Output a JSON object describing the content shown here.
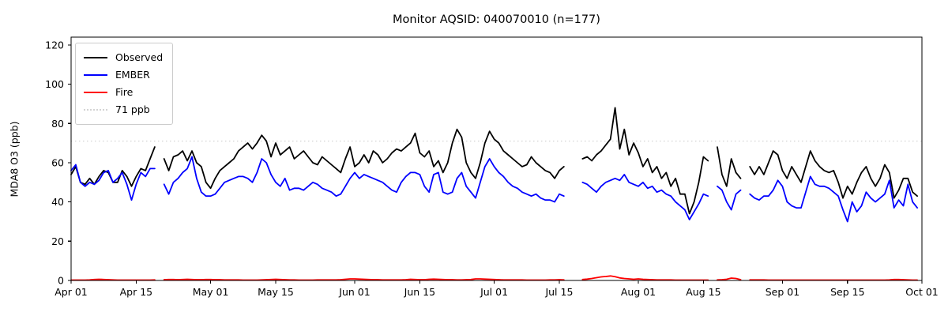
{
  "title": "Monitor AQSID: 040070010 (n=177)",
  "ylabel": "MDA8 O3 (ppb)",
  "chart_data": {
    "type": "line",
    "title": "Monitor AQSID: 040070010 (n=177)",
    "xlabel": "",
    "ylabel": "MDA8 O3 (ppb)",
    "ylim": [
      0,
      124
    ],
    "y_ticks": [
      0,
      20,
      40,
      60,
      80,
      100,
      120
    ],
    "x_tick_labels": [
      "Apr 01",
      "Apr 15",
      "May 01",
      "May 15",
      "Jun 01",
      "Jun 15",
      "Jul 01",
      "Jul 15",
      "Aug 01",
      "Aug 15",
      "Sep 01",
      "Sep 15",
      "Oct 01"
    ],
    "x_tick_days": [
      0,
      14,
      30,
      44,
      61,
      75,
      91,
      105,
      122,
      136,
      153,
      167,
      183
    ],
    "n_days": 183,
    "start_date": "Apr 01",
    "end_date": "Oct 01",
    "grid": false,
    "legend_position": "upper-left",
    "legend": [
      "Observed",
      "EMBER",
      "Fire",
      "71 ppb"
    ],
    "threshold": {
      "label": "71 ppb",
      "value": 71,
      "color": "#d3d3d3",
      "style": "dotted"
    },
    "missing_dates": [
      "Apr 20",
      "Jul 17",
      "Jul 18",
      "Jul 19",
      "Aug 17",
      "Aug 24"
    ],
    "series": [
      {
        "name": "Observed",
        "color": "#000000",
        "values": [
          54,
          58,
          50,
          49,
          52,
          49,
          53,
          56,
          55,
          50,
          50,
          56,
          53,
          48,
          53,
          57,
          56,
          62,
          68,
          null,
          62,
          56,
          63,
          64,
          66,
          61,
          66,
          60,
          58,
          50,
          47,
          52,
          56,
          58,
          60,
          62,
          66,
          68,
          70,
          67,
          70,
          74,
          71,
          63,
          70,
          64,
          66,
          68,
          62,
          64,
          66,
          63,
          60,
          59,
          63,
          61,
          59,
          57,
          55,
          62,
          68,
          58,
          60,
          64,
          60,
          66,
          64,
          60,
          62,
          65,
          67,
          66,
          68,
          70,
          75,
          65,
          63,
          66,
          58,
          61,
          55,
          60,
          70,
          77,
          73,
          60,
          55,
          52,
          60,
          70,
          76,
          72,
          70,
          66,
          64,
          62,
          60,
          58,
          59,
          63,
          60,
          58,
          56,
          55,
          52,
          56,
          58,
          null,
          null,
          null,
          62,
          63,
          61,
          64,
          66,
          69,
          72,
          88,
          67,
          77,
          64,
          70,
          65,
          58,
          62,
          55,
          58,
          52,
          55,
          48,
          52,
          44,
          44,
          34,
          40,
          50,
          63,
          61,
          null,
          68,
          54,
          48,
          62,
          55,
          52,
          null,
          58,
          54,
          58,
          54,
          60,
          66,
          64,
          56,
          52,
          58,
          54,
          50,
          58,
          66,
          61,
          58,
          56,
          55,
          56,
          50,
          42,
          48,
          44,
          50,
          55,
          58,
          52,
          48,
          52,
          59,
          55,
          42,
          46,
          52,
          52,
          45,
          43
        ]
      },
      {
        "name": "EMBER",
        "color": "#0000ff",
        "values": [
          56,
          59,
          50,
          48,
          50,
          49,
          51,
          55,
          56,
          50,
          52,
          55,
          49,
          41,
          49,
          55,
          53,
          57,
          57,
          null,
          49,
          44,
          50,
          52,
          55,
          57,
          63,
          52,
          45,
          43,
          43,
          44,
          47,
          50,
          51,
          52,
          53,
          53,
          52,
          50,
          55,
          62,
          60,
          54,
          50,
          48,
          52,
          46,
          47,
          47,
          46,
          48,
          50,
          49,
          47,
          46,
          45,
          43,
          44,
          48,
          52,
          55,
          52,
          54,
          53,
          52,
          51,
          50,
          48,
          46,
          45,
          50,
          53,
          55,
          55,
          54,
          48,
          45,
          54,
          55,
          45,
          44,
          45,
          52,
          55,
          48,
          45,
          42,
          50,
          58,
          62,
          58,
          55,
          53,
          50,
          48,
          47,
          45,
          44,
          43,
          44,
          42,
          41,
          41,
          40,
          44,
          43,
          null,
          null,
          null,
          50,
          49,
          47,
          45,
          48,
          50,
          51,
          52,
          51,
          54,
          50,
          49,
          48,
          50,
          47,
          48,
          45,
          46,
          44,
          43,
          40,
          38,
          36,
          31,
          35,
          39,
          44,
          43,
          null,
          48,
          46,
          40,
          36,
          44,
          46,
          null,
          44,
          42,
          41,
          43,
          43,
          46,
          51,
          48,
          40,
          38,
          37,
          37,
          45,
          53,
          49,
          48,
          48,
          47,
          45,
          43,
          36,
          30,
          40,
          35,
          38,
          45,
          42,
          40,
          42,
          44,
          51,
          37,
          41,
          38,
          49,
          40,
          37
        ]
      },
      {
        "name": "Fire",
        "color": "#ff0000",
        "values": [
          0.2,
          0.2,
          0.2,
          0.2,
          0.3,
          0.5,
          0.6,
          0.5,
          0.4,
          0.3,
          0.2,
          0.2,
          0.2,
          0.2,
          0.2,
          0.2,
          0.2,
          0.2,
          0.3,
          null,
          0.4,
          0.5,
          0.5,
          0.4,
          0.5,
          0.6,
          0.5,
          0.4,
          0.4,
          0.5,
          0.5,
          0.4,
          0.4,
          0.3,
          0.3,
          0.3,
          0.3,
          0.2,
          0.2,
          0.2,
          0.2,
          0.3,
          0.4,
          0.5,
          0.6,
          0.5,
          0.4,
          0.3,
          0.3,
          0.2,
          0.2,
          0.2,
          0.2,
          0.3,
          0.3,
          0.3,
          0.3,
          0.3,
          0.4,
          0.6,
          0.8,
          0.8,
          0.7,
          0.6,
          0.5,
          0.4,
          0.4,
          0.3,
          0.3,
          0.3,
          0.3,
          0.3,
          0.4,
          0.6,
          0.5,
          0.4,
          0.4,
          0.6,
          0.7,
          0.6,
          0.5,
          0.4,
          0.4,
          0.3,
          0.3,
          0.4,
          0.5,
          0.8,
          0.8,
          0.7,
          0.6,
          0.5,
          0.4,
          0.3,
          0.3,
          0.3,
          0.3,
          0.3,
          0.2,
          0.2,
          0.2,
          0.2,
          0.2,
          0.3,
          0.3,
          0.4,
          0.3,
          null,
          null,
          null,
          0.5,
          0.7,
          1.0,
          1.4,
          1.8,
          2.0,
          2.3,
          1.9,
          1.3,
          1.0,
          0.8,
          0.6,
          0.8,
          0.6,
          0.5,
          0.4,
          0.3,
          0.3,
          0.3,
          0.3,
          0.2,
          0.2,
          0.2,
          0.2,
          0.2,
          0.2,
          0.2,
          0.2,
          null,
          0.3,
          0.4,
          0.6,
          1.2,
          1.0,
          0.4,
          null,
          0.3,
          0.3,
          0.3,
          0.3,
          0.2,
          0.2,
          0.2,
          0.2,
          0.2,
          0.2,
          0.2,
          0.2,
          0.2,
          0.2,
          0.2,
          0.2,
          0.2,
          0.2,
          0.2,
          0.2,
          0.2,
          0.2,
          0.2,
          0.2,
          0.2,
          0.2,
          0.2,
          0.2,
          0.2,
          0.2,
          0.3,
          0.5,
          0.5,
          0.4,
          0.3,
          0.2,
          0.2
        ]
      }
    ]
  }
}
